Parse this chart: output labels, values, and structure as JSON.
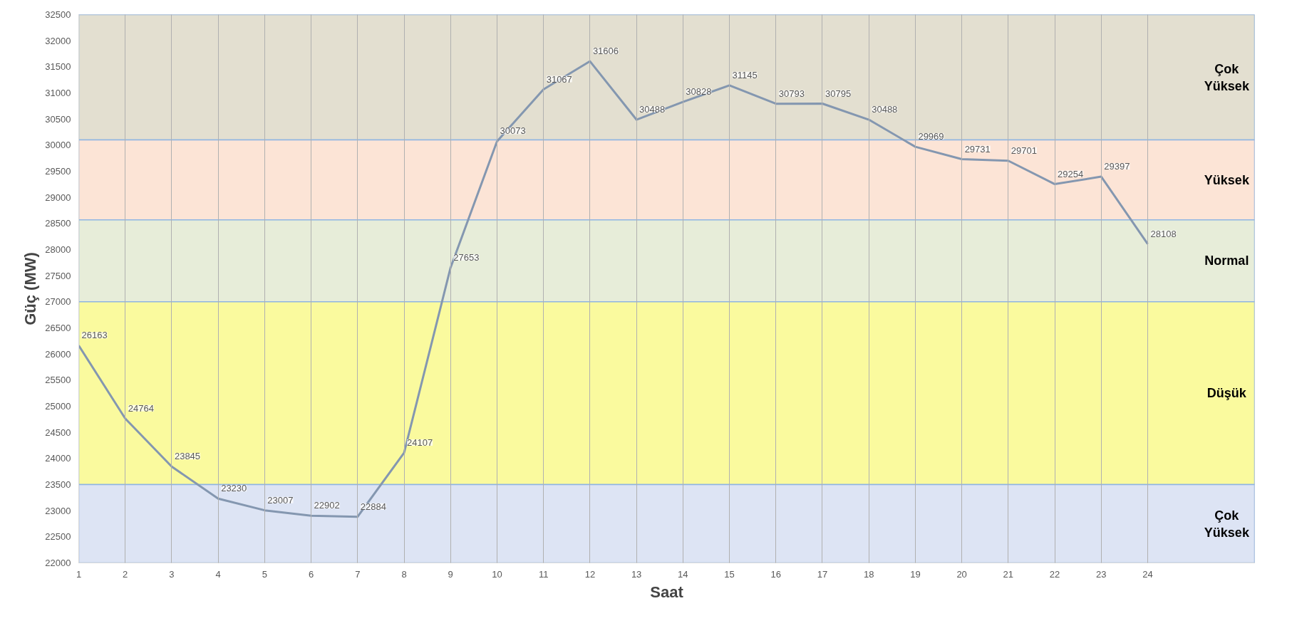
{
  "chart_data": {
    "type": "line",
    "xlabel": "Saat",
    "ylabel": "Güç (MW)",
    "x": [
      1,
      2,
      3,
      4,
      5,
      6,
      7,
      8,
      9,
      10,
      11,
      12,
      13,
      14,
      15,
      16,
      17,
      18,
      19,
      20,
      21,
      22,
      23,
      24
    ],
    "series": [
      {
        "color": "#8497b0",
        "values": [
          26163,
          24764,
          23845,
          23230,
          23007,
          22902,
          22884,
          24107,
          27653,
          30073,
          31067,
          31606,
          30488,
          30828,
          31145,
          30793,
          30795,
          30488,
          29969,
          29731,
          29701,
          29254,
          29397,
          28108
        ]
      }
    ],
    "xlim": [
      1,
      26.3
    ],
    "xticks": [
      1,
      2,
      3,
      4,
      5,
      6,
      7,
      8,
      9,
      10,
      11,
      12,
      13,
      14,
      15,
      16,
      17,
      18,
      19,
      20,
      21,
      22,
      23,
      24
    ],
    "ylim": [
      22000,
      32500
    ],
    "yticks": [
      22000,
      22500,
      23000,
      23500,
      24000,
      24500,
      25000,
      25500,
      26000,
      26500,
      27000,
      27500,
      28000,
      28500,
      29000,
      29500,
      30000,
      30500,
      31000,
      31500,
      32000,
      32500
    ],
    "bands": [
      {
        "axis": "y",
        "from": 30100,
        "to": 32500,
        "label": "Çok Yüksek",
        "color": "#e3dfd0"
      },
      {
        "axis": "y",
        "from": 28570,
        "to": 30100,
        "label": "Yüksek",
        "color": "#fce4d6"
      },
      {
        "axis": "y",
        "from": 27000,
        "to": 28570,
        "label": "Normal",
        "color": "#e7edd9"
      },
      {
        "axis": "y",
        "from": 23500,
        "to": 27000,
        "label": "Düşük",
        "color": "#fafa9e"
      },
      {
        "axis": "y",
        "from": 22000,
        "to": 23500,
        "label": "Çok Yüksek",
        "color": "#dde4f4"
      }
    ],
    "data_labels": true,
    "grid": true,
    "marker": "none",
    "line_style": "solid"
  }
}
